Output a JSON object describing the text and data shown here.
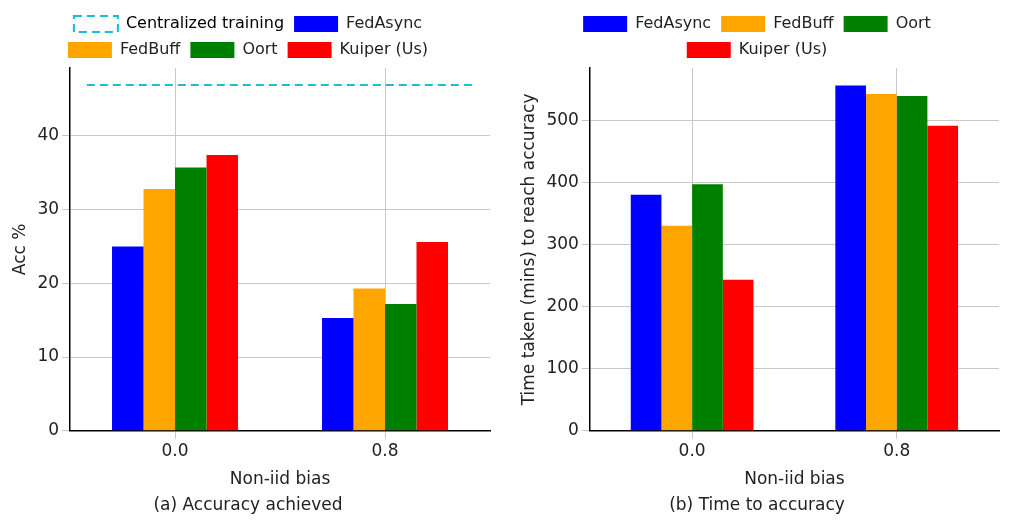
{
  "chart_data": [
    {
      "type": "bar",
      "title": "(a) Accuracy achieved",
      "xlabel": "Non-iid bias",
      "ylabel": "Acc %",
      "categories": [
        "0.0",
        "0.8"
      ],
      "series": [
        {
          "name": "FedAsync",
          "color": "#0000ff",
          "values": [
            25.0,
            15.3
          ]
        },
        {
          "name": "FedBuff",
          "color": "#ffa500",
          "values": [
            32.8,
            19.3
          ]
        },
        {
          "name": "Oort",
          "color": "#008000",
          "values": [
            35.7,
            17.2
          ]
        },
        {
          "name": "Kuiper (Us)",
          "color": "#ff0000",
          "values": [
            37.4,
            25.6
          ]
        }
      ],
      "ref_lines": [
        {
          "axis": "y",
          "value": 46.9,
          "label": "Centralized training",
          "color": "#17becf",
          "line_style": "dashed"
        }
      ],
      "ylim": [
        0,
        49.2
      ],
      "yticks": [
        0,
        10,
        20,
        30,
        40
      ],
      "grid": true,
      "legend": "top"
    },
    {
      "type": "bar",
      "title": "(b) Time to accuracy",
      "xlabel": "Non-iid bias",
      "ylabel": "Time taken (mins) to reach accuracy",
      "categories": [
        "0.0",
        "0.8"
      ],
      "series": [
        {
          "name": "FedAsync",
          "color": "#0000ff",
          "values": [
            380,
            556
          ]
        },
        {
          "name": "FedBuff",
          "color": "#ffa500",
          "values": [
            330,
            542
          ]
        },
        {
          "name": "Oort",
          "color": "#008000",
          "values": [
            397,
            539
          ]
        },
        {
          "name": "Kuiper (Us)",
          "color": "#ff0000",
          "values": [
            243,
            491
          ]
        }
      ],
      "ylim": [
        0,
        584
      ],
      "yticks": [
        0,
        100,
        200,
        300,
        400,
        500
      ],
      "grid": true,
      "legend": "top"
    }
  ]
}
